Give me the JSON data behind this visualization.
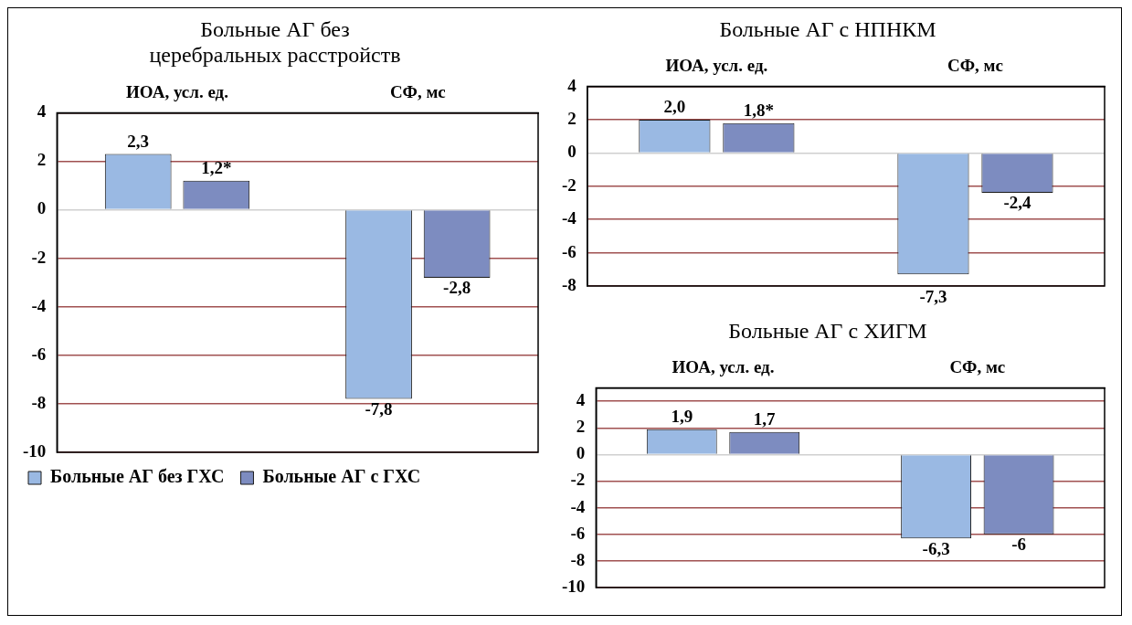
{
  "chart_data": [
    {
      "type": "bar",
      "title": "Больные АГ без церебральных расстройств",
      "categories": [
        "ИОА, усл. ед.",
        "СФ, мс"
      ],
      "series": [
        {
          "name": "Больные АГ без ГХС",
          "color": "#9ab9e3",
          "values": [
            2.3,
            -7.8
          ],
          "value_labels": [
            "2,3",
            "-7,8"
          ]
        },
        {
          "name": "Больные АГ с ГХС",
          "color": "#7d8cc0",
          "values": [
            1.2,
            -2.8
          ],
          "value_labels": [
            "1,2*",
            "-2,8"
          ]
        }
      ],
      "ylim": [
        -10,
        4
      ],
      "yticks": [
        -10,
        -8,
        -6,
        -4,
        -2,
        0,
        2,
        4
      ],
      "grid": "y",
      "legend": "bottom"
    },
    {
      "type": "bar",
      "title": "Больные АГ с НПНКМ",
      "categories": [
        "ИОА, усл. ед.",
        "СФ, мс"
      ],
      "series": [
        {
          "color": "#9ab9e3",
          "values": [
            2.0,
            -7.3
          ],
          "value_labels": [
            "2,0",
            "-7,3"
          ]
        },
        {
          "color": "#7d8cc0",
          "values": [
            1.8,
            -2.4
          ],
          "value_labels": [
            "1,8*",
            "-2,4"
          ]
        }
      ],
      "ylim": [
        -8,
        4
      ],
      "yticks": [
        -8,
        -6,
        -4,
        -2,
        0,
        2,
        4
      ],
      "grid": "y"
    },
    {
      "type": "bar",
      "title": "Больные АГ с ХИГМ",
      "categories": [
        "ИОА, усл. ед.",
        "СФ, мс"
      ],
      "series": [
        {
          "color": "#9ab9e3",
          "values": [
            1.9,
            -6.3
          ],
          "value_labels": [
            "1,9",
            "-6,3"
          ]
        },
        {
          "color": "#7d8cc0",
          "values": [
            1.7,
            -6
          ],
          "value_labels": [
            "1,7",
            "-6"
          ]
        }
      ],
      "ylim": [
        -10,
        5
      ],
      "yticks": [
        -10,
        -8,
        -6,
        -4,
        -2,
        0,
        2,
        4
      ],
      "grid": "y"
    }
  ]
}
